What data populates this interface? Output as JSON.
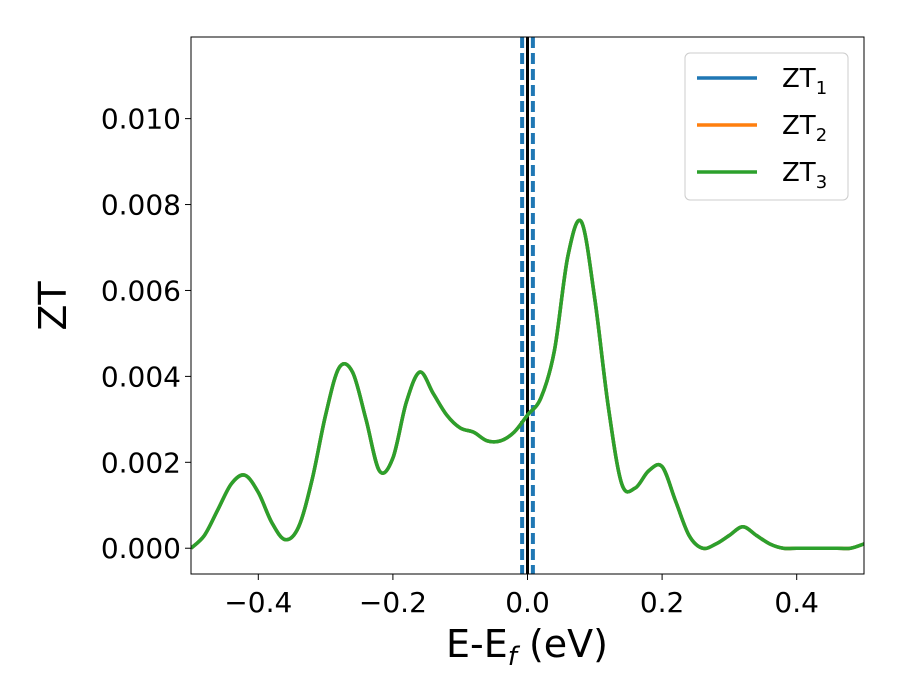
{
  "chart_data": {
    "type": "line",
    "title": "",
    "xlabel": "E-E",
    "xlabel_sub": "f",
    "xlabel_unit": " (eV)",
    "ylabel": "ZT",
    "xlim": [
      -0.5,
      0.5
    ],
    "ylim": [
      -0.0006,
      0.0119
    ],
    "x_ticks": [
      -0.4,
      -0.2,
      0.0,
      0.2,
      0.4
    ],
    "x_tick_labels": [
      "−0.4",
      "−0.2",
      "0.0",
      "0.2",
      "0.4"
    ],
    "y_ticks": [
      0.0,
      0.002,
      0.004,
      0.006,
      0.008,
      0.01
    ],
    "y_tick_labels": [
      "0.000",
      "0.002",
      "0.004",
      "0.006",
      "0.008",
      "0.010"
    ],
    "grid": false,
    "legend_position": "top-right",
    "vertical_lines": [
      {
        "x": 0.0,
        "style": "solid",
        "color": "#000000"
      },
      {
        "x": -0.008,
        "style": "dashed",
        "color": "#1f77b4"
      },
      {
        "x": 0.008,
        "style": "dashed",
        "color": "#1f77b4"
      }
    ],
    "x": [
      -0.5,
      -0.48,
      -0.46,
      -0.44,
      -0.42,
      -0.4,
      -0.38,
      -0.36,
      -0.34,
      -0.32,
      -0.3,
      -0.28,
      -0.26,
      -0.24,
      -0.22,
      -0.2,
      -0.18,
      -0.16,
      -0.14,
      -0.12,
      -0.1,
      -0.08,
      -0.06,
      -0.04,
      -0.02,
      0.0,
      0.02,
      0.04,
      0.06,
      0.08,
      0.1,
      0.12,
      0.14,
      0.16,
      0.18,
      0.2,
      0.22,
      0.24,
      0.26,
      0.28,
      0.3,
      0.32,
      0.34,
      0.36,
      0.38,
      0.4,
      0.42,
      0.44,
      0.46,
      0.48,
      0.5
    ],
    "series": [
      {
        "name": "ZT",
        "name_sub": "1",
        "color": "#1f77b4",
        "values": [
          0.0,
          0.0003,
          0.0009,
          0.0015,
          0.0017,
          0.0013,
          0.0006,
          0.0002,
          0.0005,
          0.0016,
          0.0031,
          0.0042,
          0.0041,
          0.003,
          0.0018,
          0.0021,
          0.0034,
          0.0041,
          0.0036,
          0.0031,
          0.0028,
          0.0027,
          0.0025,
          0.0025,
          0.0027,
          0.0031,
          0.0035,
          0.0046,
          0.0068,
          0.0076,
          0.0058,
          0.0033,
          0.0015,
          0.0014,
          0.0018,
          0.0019,
          0.0011,
          0.0003,
          0.0,
          0.0001,
          0.0003,
          0.0005,
          0.0003,
          0.0001,
          0.0,
          0.0,
          0.0,
          0.0,
          0.0,
          0.0,
          0.0001
        ]
      },
      {
        "name": "ZT",
        "name_sub": "2",
        "color": "#ff7f0e",
        "values": [
          0.0,
          0.0003,
          0.0009,
          0.0015,
          0.0017,
          0.0013,
          0.0006,
          0.0002,
          0.0005,
          0.0016,
          0.0031,
          0.0042,
          0.0041,
          0.003,
          0.0018,
          0.0021,
          0.0034,
          0.0041,
          0.0036,
          0.0031,
          0.0028,
          0.0027,
          0.0025,
          0.0025,
          0.0027,
          0.0031,
          0.0035,
          0.0046,
          0.0068,
          0.0076,
          0.0058,
          0.0033,
          0.0015,
          0.0014,
          0.0018,
          0.0019,
          0.0011,
          0.0003,
          0.0,
          0.0001,
          0.0003,
          0.0005,
          0.0003,
          0.0001,
          0.0,
          0.0,
          0.0,
          0.0,
          0.0,
          0.0,
          0.0001
        ]
      },
      {
        "name": "ZT",
        "name_sub": "3",
        "color": "#2ca02c",
        "values": [
          0.0,
          0.0003,
          0.0009,
          0.0015,
          0.0017,
          0.0013,
          0.0006,
          0.0002,
          0.0005,
          0.0016,
          0.0031,
          0.0042,
          0.0041,
          0.003,
          0.0018,
          0.0021,
          0.0034,
          0.0041,
          0.0036,
          0.0031,
          0.0028,
          0.0027,
          0.0025,
          0.0025,
          0.0027,
          0.0031,
          0.0035,
          0.0046,
          0.0068,
          0.0076,
          0.0058,
          0.0033,
          0.0015,
          0.0014,
          0.0018,
          0.0019,
          0.0011,
          0.0003,
          0.0,
          0.0001,
          0.0003,
          0.0005,
          0.0003,
          0.0001,
          0.0,
          0.0,
          0.0,
          0.0,
          0.0,
          0.0,
          0.0001
        ]
      }
    ]
  }
}
